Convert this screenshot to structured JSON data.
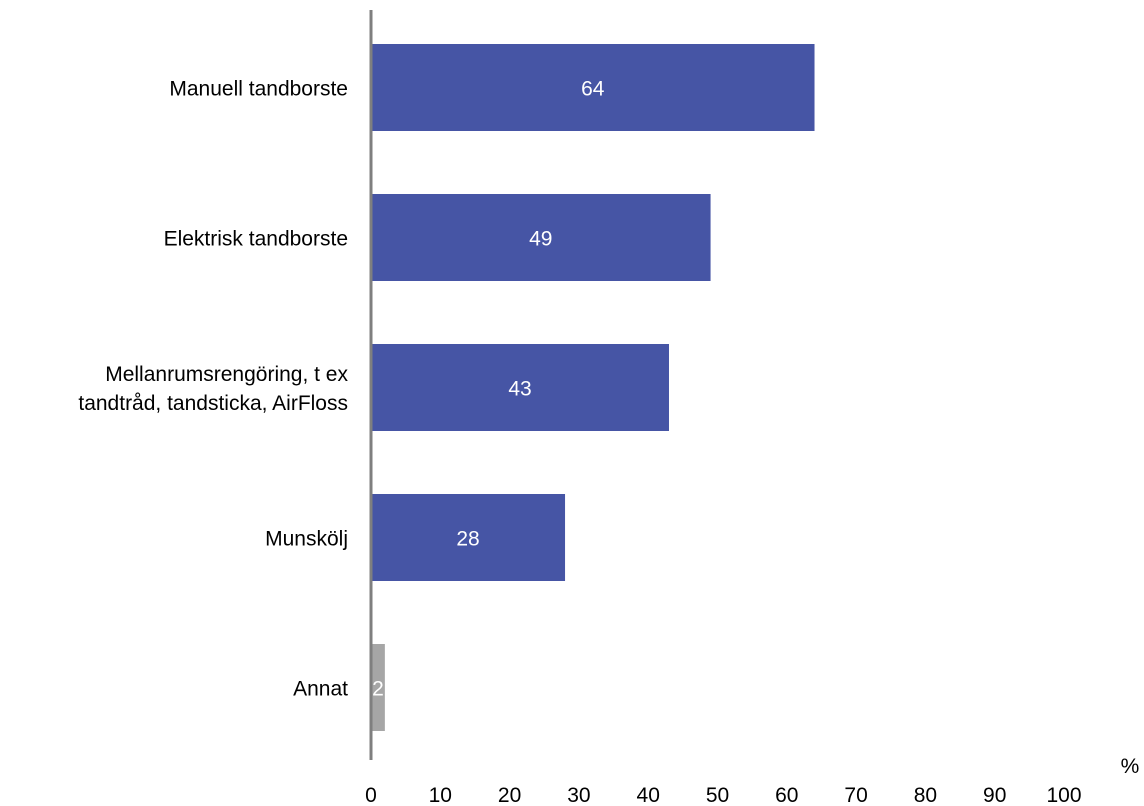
{
  "chart_data": {
    "type": "bar",
    "orientation": "horizontal",
    "categories": [
      "Manuell tandborste",
      "Elektrisk tandborste",
      "Mellanrumsrengöring, t ex tandtråd, tandsticka, AirFloss",
      "Munskölj",
      "Annat"
    ],
    "category_lines": [
      [
        "Manuell tandborste"
      ],
      [
        "Elektrisk tandborste"
      ],
      [
        "Mellanrumsrengöring, t ex",
        "tandtråd, tandsticka, AirFloss"
      ],
      [
        "Munskölj"
      ],
      [
        "Annat"
      ]
    ],
    "values": [
      64,
      49,
      43,
      28,
      2
    ],
    "bar_colors": [
      "#4655a5",
      "#4655a5",
      "#4655a5",
      "#4655a5",
      "#a6a6a6"
    ],
    "xlim": [
      0,
      100
    ],
    "xticks": [
      0,
      10,
      20,
      30,
      40,
      50,
      60,
      70,
      80,
      90,
      100
    ],
    "xlabel": "%",
    "grid": false,
    "data_labels": true
  }
}
